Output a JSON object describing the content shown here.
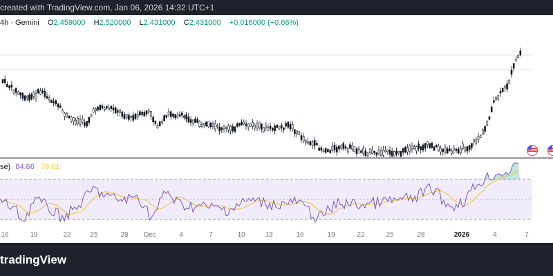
{
  "header": {
    "credit": "created with TradingView.com, Jan 06, 2026 14:32 UTC+1"
  },
  "legend": {
    "symbol_fragment": "4h · Gemini",
    "open_label": "O",
    "open": "2.459000",
    "high_label": "H",
    "high": "2.520000",
    "low_label": "L",
    "low": "2.431000",
    "close_label": "C",
    "close": "2.431000",
    "change": "+0.016000 (+0.66%)"
  },
  "rsi_legend": {
    "fragment": "se)",
    "rsi_value": "84.66",
    "ma_value": "79.01"
  },
  "date_axis": {
    "ticks": [
      "16",
      "19",
      "22",
      "25",
      "28",
      "Dec",
      "4",
      "7",
      "10",
      "13",
      "16",
      "19",
      "22",
      "25",
      "28",
      "2026",
      "4",
      "7"
    ],
    "bold_tick": "2026"
  },
  "footer": {
    "brand": "tradingView"
  },
  "colors": {
    "candles": "#131722",
    "rsi_line": "#7e57c2",
    "rsi_ma": "#f2c94c",
    "rsi_band_fill": "#f0ecfb",
    "overbought_fill": "#089981",
    "topbar_bg": "#1e222d"
  },
  "icons": {
    "event_flags": [
      "us-flag-icon",
      "us-flag-icon"
    ]
  }
}
